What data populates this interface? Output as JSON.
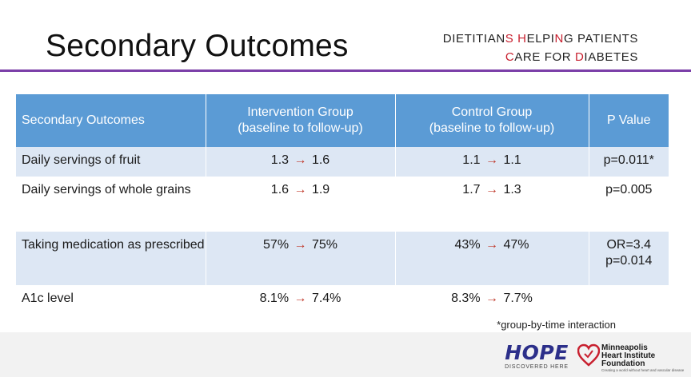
{
  "slide": {
    "title": "Secondary Outcomes"
  },
  "brand": {
    "line1_parts": [
      "D",
      "IETITIAN",
      "S",
      " ",
      "H",
      "ELPING",
      " ",
      "P",
      "ATIE",
      "N",
      "TS"
    ],
    "line1_text": "DIETITIANS HELPING PATIENTS",
    "line2_text": "CARE FOR DIABETES",
    "accent_color": "#c8202f"
  },
  "table": {
    "headers": [
      "Secondary Outcomes",
      "Intervention Group (baseline to follow-up)",
      "Control Group (baseline to follow-up)",
      "P Value"
    ],
    "header_lines": [
      [
        "Secondary Outcomes"
      ],
      [
        "Intervention Group",
        "(baseline to follow-up)"
      ],
      [
        "Control Group",
        "(baseline to follow-up)"
      ],
      [
        "P Value"
      ]
    ],
    "rows": [
      {
        "outcome": "Daily servings of fruit",
        "intervention": {
          "baseline": "1.3",
          "followup": "1.6"
        },
        "control": {
          "baseline": "1.1",
          "followup": "1.1"
        },
        "p_value": [
          "p=0.011*"
        ]
      },
      {
        "outcome": "Daily servings of whole grains",
        "intervention": {
          "baseline": "1.6",
          "followup": "1.9"
        },
        "control": {
          "baseline": "1.7",
          "followup": "1.3"
        },
        "p_value": [
          "p=0.005"
        ]
      },
      {
        "outcome": "Taking medication as prescribed",
        "intervention": {
          "baseline": "57%",
          "followup": "75%"
        },
        "control": {
          "baseline": "43%",
          "followup": "47%"
        },
        "p_value": [
          "OR=3.4",
          "p=0.014"
        ]
      },
      {
        "outcome": "A1c level",
        "intervention": {
          "baseline": "8.1%",
          "followup": "7.4%"
        },
        "control": {
          "baseline": "8.3%",
          "followup": "7.7%"
        },
        "p_value": []
      }
    ],
    "arrow_glyph": "→",
    "header_color": "#5b9bd5",
    "band_color": "#dde7f4",
    "arrow_color": "#c0392b"
  },
  "footnote": "*group-by-time interaction",
  "logos": {
    "hope": {
      "word": "HOPE",
      "tagline": "DISCOVERED HERE"
    },
    "mhif": {
      "name_lines": [
        "Minneapolis",
        "Heart Institute",
        "Foundation"
      ],
      "tagline": "Creating a world without heart and vascular disease",
      "heart_icon": "heart-icon",
      "heart_color": "#c8202f"
    }
  },
  "colors": {
    "divider": "#7b3fa8",
    "bottom_band": "#f2f2f2"
  }
}
